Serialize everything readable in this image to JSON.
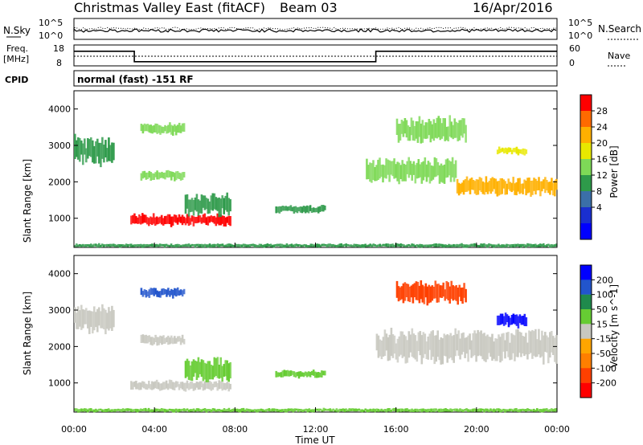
{
  "header": {
    "title": "Christmas Valley East (fitACF)",
    "beam": "Beam 03",
    "date": "16/Apr/2016"
  },
  "strips": {
    "nsky_label": "N.Sky",
    "nsky_ticks": [
      "10^5",
      "10^0"
    ],
    "nsearch_label": "N.Search",
    "nsearch_ticks": [
      "10^5",
      "10^0"
    ],
    "freq_label": "Freq.",
    "freq_unit": "[MHz]",
    "freq_ticks": [
      "18",
      "8"
    ],
    "nave_label": "Nave",
    "nave_ticks": [
      "60",
      "0"
    ],
    "cpid_label": "CPID",
    "cpid_text": "normal (fast) -151 RF"
  },
  "axes": {
    "y_label": "Slant Range [km]",
    "y_ticks": [
      "4000",
      "3000",
      "2000",
      "1000"
    ],
    "x_label": "Time UT",
    "x_ticks": [
      "00:00",
      "04:00",
      "08:00",
      "12:00",
      "16:00",
      "20:00",
      "00:00"
    ]
  },
  "power_scale": {
    "label": "Power [dB]",
    "ticks": [
      "28",
      "24",
      "20",
      "16",
      "12",
      "8",
      "4"
    ],
    "colors": [
      "#ff0000",
      "#ff6a00",
      "#ffb000",
      "#e8e800",
      "#7ed957",
      "#2e9a4a",
      "#3b6fa8",
      "#1a2fd0",
      "#0000ff"
    ]
  },
  "velocity_scale": {
    "label": "Velocity [m s^-1]",
    "ticks": [
      "200",
      "100",
      "50",
      "15",
      "-15",
      "-50",
      "-100",
      "-200"
    ],
    "colors": [
      "#0000ff",
      "#2255cc",
      "#1f8a4c",
      "#66cc33",
      "#c8c8c0",
      "#ffa500",
      "#ff7f00",
      "#ff4000",
      "#ff0000"
    ]
  },
  "chart_data": [
    {
      "type": "heatmap",
      "title": "Power",
      "xlabel": "Time UT",
      "ylabel": "Slant Range [km]",
      "x_range_hours": [
        0,
        24
      ],
      "ylim_km": [
        200,
        4500
      ],
      "colorbar": "Power [dB]",
      "features": [
        {
          "t": [
            2.8,
            7.8
          ],
          "km": [
            800,
            1100
          ],
          "value_db": 28
        },
        {
          "t": [
            5.5,
            7.8
          ],
          "km": [
            1100,
            1650
          ],
          "value_db": 10
        },
        {
          "t": [
            3.3,
            5.5
          ],
          "km": [
            2050,
            2300
          ],
          "value_db": 14
        },
        {
          "t": [
            3.3,
            5.5
          ],
          "km": [
            3300,
            3600
          ],
          "value_db": 14
        },
        {
          "t": [
            0.0,
            2.0
          ],
          "km": [
            2500,
            3200
          ],
          "value_db": 8
        },
        {
          "t": [
            10.0,
            12.5
          ],
          "km": [
            1150,
            1350
          ],
          "value_db": 10
        },
        {
          "t": [
            16.0,
            19.5
          ],
          "km": [
            3100,
            3750
          ],
          "value_db": 14
        },
        {
          "t": [
            19.0,
            24.0
          ],
          "km": [
            1650,
            2100
          ],
          "value_db": 20
        },
        {
          "t": [
            14.5,
            19.0
          ],
          "km": [
            2000,
            2600
          ],
          "value_db": 12
        },
        {
          "t": [
            21.0,
            22.5
          ],
          "km": [
            2750,
            2950
          ],
          "value_db": 18
        },
        {
          "t": [
            0.0,
            24.0
          ],
          "km": [
            200,
            300
          ],
          "value_db": 10
        }
      ]
    },
    {
      "type": "heatmap",
      "title": "Velocity",
      "xlabel": "Time UT",
      "ylabel": "Slant Range [km]",
      "x_range_hours": [
        0,
        24
      ],
      "ylim_km": [
        200,
        4500
      ],
      "colorbar": "Velocity [m s^-1]",
      "features": [
        {
          "t": [
            2.8,
            7.8
          ],
          "km": [
            800,
            1050
          ],
          "value_ms": 0
        },
        {
          "t": [
            5.5,
            7.8
          ],
          "km": [
            1050,
            1650
          ],
          "value_ms": 40
        },
        {
          "t": [
            3.3,
            5.5
          ],
          "km": [
            3350,
            3600
          ],
          "value_ms": 150
        },
        {
          "t": [
            3.3,
            5.5
          ],
          "km": [
            2050,
            2300
          ],
          "value_ms": 0
        },
        {
          "t": [
            0.0,
            2.0
          ],
          "km": [
            2400,
            3100
          ],
          "value_ms": 0
        },
        {
          "t": [
            16.0,
            19.5
          ],
          "km": [
            3200,
            3750
          ],
          "value_ms": -200
        },
        {
          "t": [
            21.0,
            22.5
          ],
          "km": [
            2550,
            2900
          ],
          "value_ms": 200
        },
        {
          "t": [
            15.0,
            24.0
          ],
          "km": [
            1600,
            2400
          ],
          "value_ms": 0
        },
        {
          "t": [
            10.0,
            12.5
          ],
          "km": [
            1150,
            1350
          ],
          "value_ms": 40
        },
        {
          "t": [
            0.0,
            24.0
          ],
          "km": [
            200,
            300
          ],
          "value_ms": 30
        }
      ]
    },
    {
      "type": "line",
      "title": "Freq.",
      "x_hours": [
        0,
        3,
        3,
        15,
        15,
        24
      ],
      "values_mhz": [
        15,
        15,
        10,
        10,
        15,
        15
      ],
      "ylim": [
        8,
        18
      ]
    }
  ]
}
